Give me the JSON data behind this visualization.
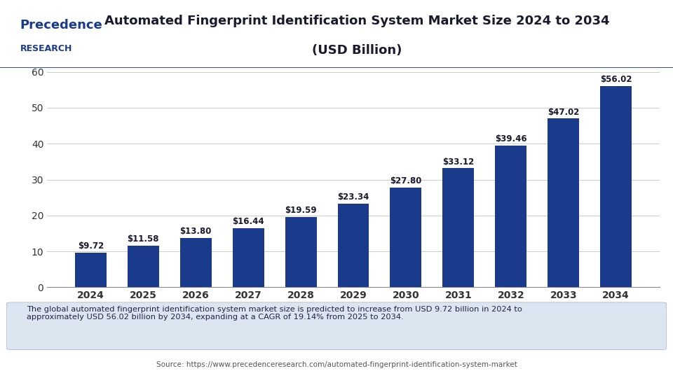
{
  "title_line1": "Automated Fingerprint Identification System Market Size 2024 to 2034",
  "title_line2": "(USD Billion)",
  "years": [
    2024,
    2025,
    2026,
    2027,
    2028,
    2029,
    2030,
    2031,
    2032,
    2033,
    2034
  ],
  "values": [
    9.72,
    11.58,
    13.8,
    16.44,
    19.59,
    23.34,
    27.8,
    33.12,
    39.46,
    47.02,
    56.02
  ],
  "bar_color": "#1a3a8c",
  "bar_labels": [
    "$9.72",
    "$11.58",
    "$13.80",
    "$16.44",
    "$19.59",
    "$23.34",
    "$27.80",
    "$33.12",
    "$39.46",
    "$47.02",
    "$56.02"
  ],
  "ylim": [
    0,
    60
  ],
  "yticks": [
    0,
    10,
    20,
    30,
    40,
    50,
    60
  ],
  "footnote": "The global automated fingerprint identification system market size is predicted to increase from USD 9.72 billion in 2024 to\napproximately USD 56.02 billion by 2034, expanding at a CAGR of 19.14% from 2025 to 2034.",
  "source": "Source: https://www.precedenceresearch.com/automated-fingerprint-identification-system-market",
  "header_bg": "#ffffff",
  "chart_bg": "#ffffff",
  "footnote_bg": "#dce6f1",
  "title_color": "#1a1a2e",
  "bar_label_color": "#1a1a2e",
  "axis_color": "#333333",
  "grid_color": "#cccccc",
  "logo_text1": "Precedence",
  "logo_text2": "RESEARCH",
  "logo_color": "#1a3a8c"
}
